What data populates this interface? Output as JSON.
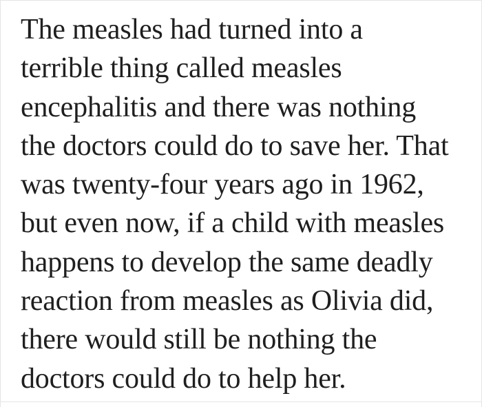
{
  "colors": {
    "text": "#1f1f1f",
    "border": "#e5e5e5",
    "background": "#ffffff"
  },
  "article": {
    "lines": [
      "The measles had turned into a",
      "terrible thing called measles",
      "encephalitis and there was nothing",
      "the doctors could do to save her. That",
      "was twenty-four years ago in 1962,",
      "but even now, if a child with measles",
      "happens to develop the same deadly",
      "reaction from measles as Olivia did,",
      "there would still be nothing the",
      "doctors could do to help her."
    ]
  }
}
